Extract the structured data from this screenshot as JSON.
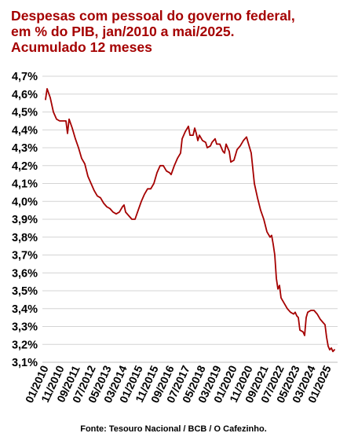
{
  "chart_data": {
    "type": "line",
    "title_lines": [
      "Despesas com pessoal do governo federal,",
      "em % do PIB, jan/2010 a mai/2025.",
      "Acumulado 12 meses"
    ],
    "source": "Fonte: Tesouro Nacional / BCB / O Cafezinho.",
    "ylim": [
      3.1,
      4.7
    ],
    "y_ticks": [
      {
        "value": 4.7,
        "label": "4,7%"
      },
      {
        "value": 4.6,
        "label": "4,6%"
      },
      {
        "value": 4.5,
        "label": "4,5%"
      },
      {
        "value": 4.4,
        "label": "4,4%"
      },
      {
        "value": 4.3,
        "label": "4,3%"
      },
      {
        "value": 4.2,
        "label": "4,2%"
      },
      {
        "value": 4.1,
        "label": "4,1%"
      },
      {
        "value": 4.0,
        "label": "4,0%"
      },
      {
        "value": 3.9,
        "label": "3,9%"
      },
      {
        "value": 3.8,
        "label": "3,8%"
      },
      {
        "value": 3.7,
        "label": "3,7%"
      },
      {
        "value": 3.6,
        "label": "3,6%"
      },
      {
        "value": 3.5,
        "label": "3,5%"
      },
      {
        "value": 3.4,
        "label": "3,4%"
      },
      {
        "value": 3.3,
        "label": "3,3%"
      },
      {
        "value": 3.2,
        "label": "3,2%"
      },
      {
        "value": 3.1,
        "label": "3,1%"
      }
    ],
    "x_range": [
      "2010-01",
      "2025-05"
    ],
    "x_ticks": [
      "01/2010",
      "11/2010",
      "09/2011",
      "07/2012",
      "05/2013",
      "03/2014",
      "01/2015",
      "11/2015",
      "09/2016",
      "07/2017",
      "05/2018",
      "03/2019",
      "01/2020",
      "11/2020",
      "09/2021",
      "07/2022",
      "05/2023",
      "03/2024",
      "01/2025"
    ],
    "grid": true,
    "line_color": "#a50000",
    "series": [
      {
        "points": [
          [
            "2010-01",
            4.57
          ],
          [
            "2010-02",
            4.63
          ],
          [
            "2010-04",
            4.58
          ],
          [
            "2010-06",
            4.5
          ],
          [
            "2010-08",
            4.46
          ],
          [
            "2010-10",
            4.45
          ],
          [
            "2010-12",
            4.45
          ],
          [
            "2011-02",
            4.45
          ],
          [
            "2011-03",
            4.38
          ],
          [
            "2011-04",
            4.46
          ],
          [
            "2011-06",
            4.41
          ],
          [
            "2011-08",
            4.35
          ],
          [
            "2011-10",
            4.3
          ],
          [
            "2011-12",
            4.24
          ],
          [
            "2012-02",
            4.21
          ],
          [
            "2012-04",
            4.14
          ],
          [
            "2012-06",
            4.1
          ],
          [
            "2012-08",
            4.06
          ],
          [
            "2012-10",
            4.03
          ],
          [
            "2012-12",
            4.02
          ],
          [
            "2013-02",
            3.99
          ],
          [
            "2013-04",
            3.97
          ],
          [
            "2013-06",
            3.96
          ],
          [
            "2013-08",
            3.94
          ],
          [
            "2013-10",
            3.93
          ],
          [
            "2013-12",
            3.94
          ],
          [
            "2014-02",
            3.97
          ],
          [
            "2014-03",
            3.98
          ],
          [
            "2014-04",
            3.94
          ],
          [
            "2014-06",
            3.92
          ],
          [
            "2014-08",
            3.9
          ],
          [
            "2014-10",
            3.9
          ],
          [
            "2014-12",
            3.95
          ],
          [
            "2015-02",
            4.0
          ],
          [
            "2015-04",
            4.04
          ],
          [
            "2015-06",
            4.07
          ],
          [
            "2015-08",
            4.07
          ],
          [
            "2015-10",
            4.1
          ],
          [
            "2015-12",
            4.16
          ],
          [
            "2016-02",
            4.2
          ],
          [
            "2016-04",
            4.2
          ],
          [
            "2016-06",
            4.17
          ],
          [
            "2016-08",
            4.16
          ],
          [
            "2016-09",
            4.15
          ],
          [
            "2016-11",
            4.2
          ],
          [
            "2017-01",
            4.24
          ],
          [
            "2017-03",
            4.27
          ],
          [
            "2017-04",
            4.35
          ],
          [
            "2017-06",
            4.39
          ],
          [
            "2017-08",
            4.42
          ],
          [
            "2017-09",
            4.37
          ],
          [
            "2017-11",
            4.37
          ],
          [
            "2017-12",
            4.41
          ],
          [
            "2018-01",
            4.38
          ],
          [
            "2018-02",
            4.34
          ],
          [
            "2018-03",
            4.37
          ],
          [
            "2018-05",
            4.34
          ],
          [
            "2018-07",
            4.33
          ],
          [
            "2018-08",
            4.3
          ],
          [
            "2018-10",
            4.31
          ],
          [
            "2018-11",
            4.33
          ],
          [
            "2019-01",
            4.35
          ],
          [
            "2019-02",
            4.32
          ],
          [
            "2019-04",
            4.32
          ],
          [
            "2019-06",
            4.28
          ],
          [
            "2019-07",
            4.27
          ],
          [
            "2019-08",
            4.32
          ],
          [
            "2019-10",
            4.28
          ],
          [
            "2019-11",
            4.22
          ],
          [
            "2020-01",
            4.23
          ],
          [
            "2020-03",
            4.29
          ],
          [
            "2020-05",
            4.31
          ],
          [
            "2020-07",
            4.34
          ],
          [
            "2020-09",
            4.36
          ],
          [
            "2020-10",
            4.33
          ],
          [
            "2020-12",
            4.27
          ],
          [
            "2021-02",
            4.1
          ],
          [
            "2021-04",
            4.02
          ],
          [
            "2021-06",
            3.95
          ],
          [
            "2021-08",
            3.9
          ],
          [
            "2021-10",
            3.83
          ],
          [
            "2021-12",
            3.8
          ],
          [
            "2022-01",
            3.81
          ],
          [
            "2022-02",
            3.76
          ],
          [
            "2022-03",
            3.7
          ],
          [
            "2022-04",
            3.57
          ],
          [
            "2022-05",
            3.51
          ],
          [
            "2022-06",
            3.53
          ],
          [
            "2022-07",
            3.46
          ],
          [
            "2022-09",
            3.43
          ],
          [
            "2022-11",
            3.4
          ],
          [
            "2023-01",
            3.38
          ],
          [
            "2023-03",
            3.37
          ],
          [
            "2023-04",
            3.38
          ],
          [
            "2023-05",
            3.36
          ],
          [
            "2023-06",
            3.35
          ],
          [
            "2023-07",
            3.28
          ],
          [
            "2023-09",
            3.27
          ],
          [
            "2023-10",
            3.25
          ],
          [
            "2023-11",
            3.35
          ],
          [
            "2023-12",
            3.38
          ],
          [
            "2024-02",
            3.39
          ],
          [
            "2024-04",
            3.39
          ],
          [
            "2024-06",
            3.37
          ],
          [
            "2024-08",
            3.34
          ],
          [
            "2024-10",
            3.32
          ],
          [
            "2024-11",
            3.31
          ],
          [
            "2024-12",
            3.24
          ],
          [
            "2025-01",
            3.19
          ],
          [
            "2025-02",
            3.17
          ],
          [
            "2025-03",
            3.18
          ],
          [
            "2025-04",
            3.16
          ],
          [
            "2025-05",
            3.17
          ]
        ]
      }
    ]
  }
}
